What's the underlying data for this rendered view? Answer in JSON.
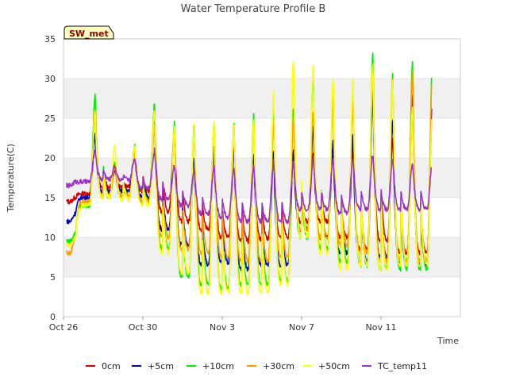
{
  "chart_data": {
    "type": "line",
    "title": "Water Temperature Profile B",
    "xlabel": "Time",
    "ylabel": "Temperature(C)",
    "ylim": [
      0,
      35
    ],
    "yticks": [
      0,
      5,
      10,
      15,
      20,
      25,
      30,
      35
    ],
    "xlim": [
      "Oct 26",
      "Nov 13"
    ],
    "xticks": [
      "Oct 26",
      "Oct 30",
      "Nov 3",
      "Nov 7",
      "Nov 11"
    ],
    "grid": "horizontal bands",
    "legend_position": "bottom",
    "site_label": "SW_met",
    "colors": {
      "0cm": "#dd0000",
      "+5cm": "#0000cc",
      "+10cm": "#00ee00",
      "+30cm": "#ff9900",
      "+50cm": "#ffff00",
      "TC_temp11": "#9933cc"
    },
    "daily_x": [
      "Oct 26",
      "Oct 27",
      "Oct 28",
      "Oct 29",
      "Oct 30",
      "Oct 31",
      "Nov 1",
      "Nov 2",
      "Nov 3",
      "Nov 4",
      "Nov 5",
      "Nov 6",
      "Nov 7",
      "Nov 8",
      "Nov 9",
      "Nov 10",
      "Nov 11",
      "Nov 12"
    ],
    "series": [
      {
        "name": "0cm",
        "min": [
          14.5,
          15.5,
          16.2,
          16.4,
          15.8,
          13.2,
          12.0,
          11.0,
          10.0,
          9.5,
          9.8,
          10.0,
          12.0,
          12.0,
          10.0,
          8.5,
          9.5,
          8.0
        ],
        "max": [
          15.0,
          23.0,
          18.5,
          21.0,
          25.0,
          23.5,
          20.0,
          20.5,
          21.0,
          20.5,
          21.0,
          20.5,
          20.5,
          20.5,
          21.0,
          29.0,
          22.5,
          26.0
        ]
      },
      {
        "name": "+5cm",
        "min": [
          12.0,
          15.0,
          15.8,
          15.8,
          15.0,
          11.0,
          9.0,
          6.5,
          6.8,
          6.0,
          6.5,
          6.5,
          11.0,
          10.0,
          8.0,
          7.0,
          7.5,
          6.5
        ],
        "max": [
          13.0,
          23.0,
          19.0,
          21.5,
          24.0,
          23.0,
          20.0,
          21.5,
          21.0,
          20.5,
          20.5,
          21.0,
          24.0,
          22.0,
          23.0,
          28.0,
          25.0,
          28.0
        ]
      },
      {
        "name": "+10cm",
        "min": [
          9.5,
          14.0,
          15.0,
          15.0,
          14.5,
          8.5,
          5.0,
          4.0,
          3.5,
          4.0,
          4.0,
          4.5,
          10.0,
          8.5,
          7.0,
          6.5,
          6.0,
          6.0
        ],
        "max": [
          10.5,
          28.0,
          19.5,
          21.5,
          27.0,
          24.5,
          24.5,
          24.5,
          24.5,
          25.5,
          26.0,
          26.5,
          31.0,
          28.5,
          28.5,
          33.5,
          30.5,
          32.5
        ]
      },
      {
        "name": "+30cm",
        "min": [
          8.0,
          14.5,
          15.2,
          15.2,
          14.5,
          10.0,
          8.5,
          8.0,
          7.5,
          7.0,
          7.0,
          7.5,
          11.0,
          10.0,
          9.0,
          8.0,
          7.0,
          7.0
        ],
        "max": [
          10.0,
          25.0,
          19.0,
          21.0,
          24.0,
          23.0,
          23.0,
          24.0,
          24.0,
          24.0,
          24.5,
          25.0,
          26.0,
          27.0,
          27.0,
          30.5,
          30.0,
          31.0
        ]
      },
      {
        "name": "+50cm",
        "min": [
          9.0,
          14.0,
          15.0,
          14.8,
          14.0,
          8.0,
          5.5,
          3.0,
          3.0,
          3.0,
          3.0,
          4.0,
          10.0,
          8.0,
          6.0,
          6.5,
          6.0,
          6.5
        ],
        "max": [
          10.0,
          26.0,
          21.5,
          21.5,
          26.0,
          24.0,
          24.0,
          24.5,
          24.0,
          25.0,
          28.5,
          32.5,
          32.0,
          30.0,
          30.0,
          32.0,
          30.0,
          26.5
        ]
      },
      {
        "name": "TC_temp11",
        "min": [
          16.5,
          17.0,
          17.3,
          17.2,
          16.2,
          14.8,
          14.0,
          13.0,
          12.5,
          12.0,
          12.0,
          12.0,
          13.5,
          13.5,
          13.0,
          13.5,
          13.5,
          13.5
        ],
        "max": [
          17.0,
          21.0,
          19.0,
          20.0,
          21.0,
          19.0,
          18.5,
          19.0,
          19.0,
          19.0,
          19.5,
          19.5,
          20.0,
          20.0,
          20.0,
          20.5,
          20.0,
          19.5
        ]
      }
    ]
  }
}
